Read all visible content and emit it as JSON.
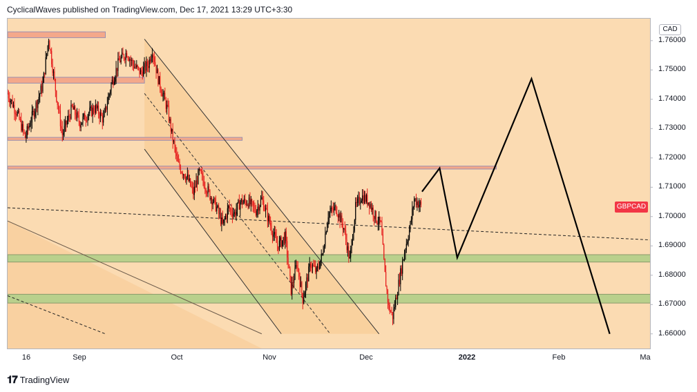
{
  "header": {
    "text": "CyclicalWaves published on TradingView.com, Dec 17, 2021 13:29 UTC+3:30"
  },
  "footer": {
    "brand": "TradingView",
    "logo": "tv-logo-icon"
  },
  "symbol": {
    "ticker": "GBPCAD",
    "currency": "CAD"
  },
  "colors": {
    "background": "#fbdbb2",
    "bull": "#000000",
    "bear": "#e51a1a",
    "resistance_zone": "#f4a88a",
    "support_zone": "#b9d08c",
    "symbol_tag": "#f23645"
  },
  "chart_data": {
    "type": "candlestick",
    "title": "",
    "xlabel": "",
    "ylabel": "",
    "ylim": [
      1.655,
      1.7675
    ],
    "y_ticks": [
      "1.76000",
      "1.75000",
      "1.74000",
      "1.73000",
      "1.72000",
      "1.71000",
      "1.70000",
      "1.69000",
      "1.68000",
      "1.67000",
      "1.66000"
    ],
    "x_ticks": [
      {
        "label": "16",
        "bold": false
      },
      {
        "label": "Sep",
        "bold": false
      },
      {
        "label": "Oct",
        "bold": false
      },
      {
        "label": "Nov",
        "bold": false
      },
      {
        "label": "Dec",
        "bold": false
      },
      {
        "label": "2022",
        "bold": true
      },
      {
        "label": "Feb",
        "bold": false
      },
      {
        "label": "Ma",
        "bold": false
      }
    ],
    "last_price": 1.7033,
    "price_path": [
      [
        0,
        1.742
      ],
      [
        5,
        1.735
      ],
      [
        9,
        1.727
      ],
      [
        14,
        1.737
      ],
      [
        18,
        1.745
      ],
      [
        21,
        1.761
      ],
      [
        25,
        1.741
      ],
      [
        28,
        1.728
      ],
      [
        33,
        1.737
      ],
      [
        37,
        1.732
      ],
      [
        41,
        1.735
      ],
      [
        45,
        1.737
      ],
      [
        49,
        1.733
      ],
      [
        53,
        1.745
      ],
      [
        57,
        1.753
      ],
      [
        61,
        1.756
      ],
      [
        64,
        1.752
      ],
      [
        68,
        1.749
      ],
      [
        72,
        1.752
      ],
      [
        74,
        1.757
      ],
      [
        77,
        1.747
      ],
      [
        82,
        1.736
      ],
      [
        84,
        1.728
      ],
      [
        87,
        1.718
      ],
      [
        92,
        1.713
      ],
      [
        95,
        1.708
      ],
      [
        98,
        1.715
      ],
      [
        103,
        1.708
      ],
      [
        107,
        1.703
      ],
      [
        110,
        1.697
      ],
      [
        113,
        1.703
      ],
      [
        116,
        1.701
      ],
      [
        119,
        1.705
      ],
      [
        123,
        1.705
      ],
      [
        127,
        1.702
      ],
      [
        130,
        1.706
      ],
      [
        134,
        1.698
      ],
      [
        138,
        1.69
      ],
      [
        142,
        1.693
      ],
      [
        145,
        1.675
      ],
      [
        148,
        1.684
      ],
      [
        151,
        1.672
      ],
      [
        155,
        1.684
      ],
      [
        158,
        1.681
      ],
      [
        161,
        1.687
      ],
      [
        164,
        1.701
      ],
      [
        168,
        1.703
      ],
      [
        172,
        1.696
      ],
      [
        175,
        1.685
      ],
      [
        178,
        1.703
      ],
      [
        181,
        1.707
      ],
      [
        185,
        1.705
      ],
      [
        188,
        1.7
      ],
      [
        191,
        1.697
      ],
      [
        193,
        1.68
      ],
      [
        195,
        1.669
      ],
      [
        197,
        1.666
      ],
      [
        200,
        1.677
      ],
      [
        203,
        1.688
      ],
      [
        206,
        1.697
      ],
      [
        208,
        1.706
      ],
      [
        211,
        1.704
      ],
      [
        212,
        1.703
      ]
    ],
    "zones": [
      {
        "name": "resistance-zone-top",
        "y1": 1.763,
        "y2": 1.761,
        "x_end_day": 50
      },
      {
        "name": "resistance-zone-mid",
        "y1": 1.7475,
        "y2": 1.7455,
        "x_end_day": 70
      },
      {
        "name": "resistance-zone-low",
        "y1": 1.727,
        "y2": 1.726,
        "x_end_day": 120
      },
      {
        "name": "resistance-zone-target",
        "y1": 1.7172,
        "y2": 1.7162,
        "x_end_day": 250
      },
      {
        "name": "support-zone-upper",
        "y1": 1.687,
        "y2": 1.6845,
        "x_end_day": 330
      },
      {
        "name": "support-zone-lower",
        "y1": 1.6735,
        "y2": 1.6705,
        "x_end_day": 330
      }
    ],
    "channel": {
      "upper": [
        [
          70,
          1.7605
        ],
        [
          190,
          1.66
        ]
      ],
      "lower": [
        [
          70,
          1.723
        ],
        [
          140,
          1.66
        ]
      ],
      "mid": [
        [
          70,
          1.742
        ],
        [
          165,
          1.66
        ]
      ]
    },
    "trendlines": [
      {
        "name": "long-diagonal-line",
        "points": [
          [
            0,
            1.6985
          ],
          [
            130,
            1.66
          ]
        ]
      },
      {
        "name": "dashed-diagonal-line",
        "points": [
          [
            0,
            1.673
          ],
          [
            50,
            1.66
          ]
        ]
      },
      {
        "name": "horizontal-dashed-trendline",
        "points": [
          [
            0,
            1.703
          ],
          [
            330,
            1.692
          ]
        ]
      }
    ],
    "projection": [
      [
        212,
        1.7085
      ],
      [
        221,
        1.7165
      ],
      [
        230,
        1.686
      ],
      [
        268,
        1.747
      ],
      [
        308,
        1.66
      ]
    ],
    "projection_label_points_days": {
      "start": 212,
      "end": 308
    }
  }
}
